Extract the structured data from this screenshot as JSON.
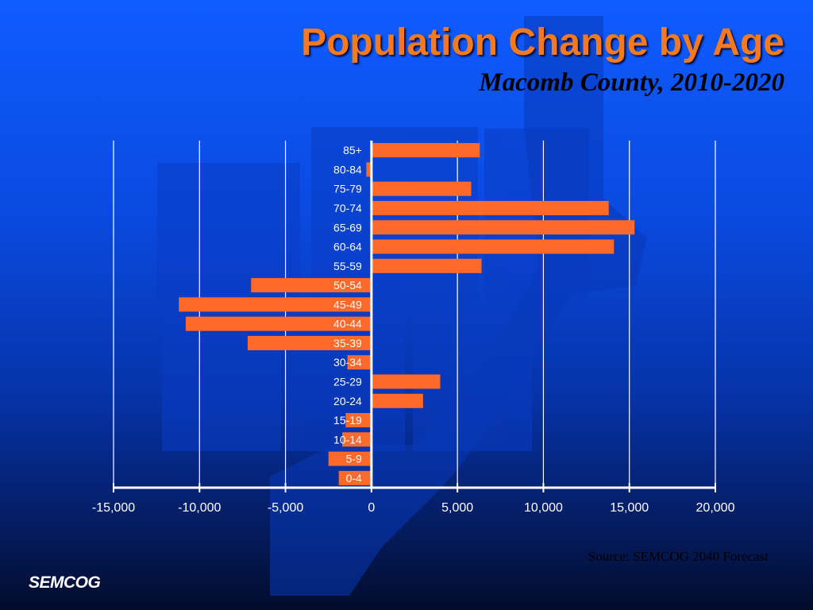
{
  "header": {
    "title": "Population Change by Age",
    "subtitle": "Macomb County, 2010-2020"
  },
  "footer": {
    "source": "Source: SEMCOG 2040 Forecast",
    "logo_text": "SEMCOG"
  },
  "colors": {
    "bar": "#ff6a2a",
    "title": "#f47a20",
    "grid": "#ffffff",
    "text": "#000000"
  },
  "chart_data": {
    "type": "bar",
    "orientation": "horizontal",
    "categories": [
      "85+",
      "80-84",
      "75-79",
      "70-74",
      "65-69",
      "60-64",
      "55-59",
      "50-54",
      "45-49",
      "40-44",
      "35-39",
      "30-34",
      "25-29",
      "20-24",
      "15-19",
      "10-14",
      "5-9",
      "0-4"
    ],
    "values": [
      6300,
      -300,
      5800,
      13800,
      15300,
      14100,
      6400,
      -7000,
      -11200,
      -10800,
      -7200,
      -1400,
      4000,
      3000,
      -1500,
      -1700,
      -2500,
      -1900
    ],
    "xlim": [
      -15000,
      20000
    ],
    "xticks": [
      -15000,
      -10000,
      -5000,
      0,
      5000,
      10000,
      15000,
      20000
    ],
    "xtick_labels": [
      "-15,000",
      "-10,000",
      "-5,000",
      "0",
      "5,000",
      "10,000",
      "15,000",
      "20,000"
    ],
    "grid": true,
    "legend": false
  }
}
